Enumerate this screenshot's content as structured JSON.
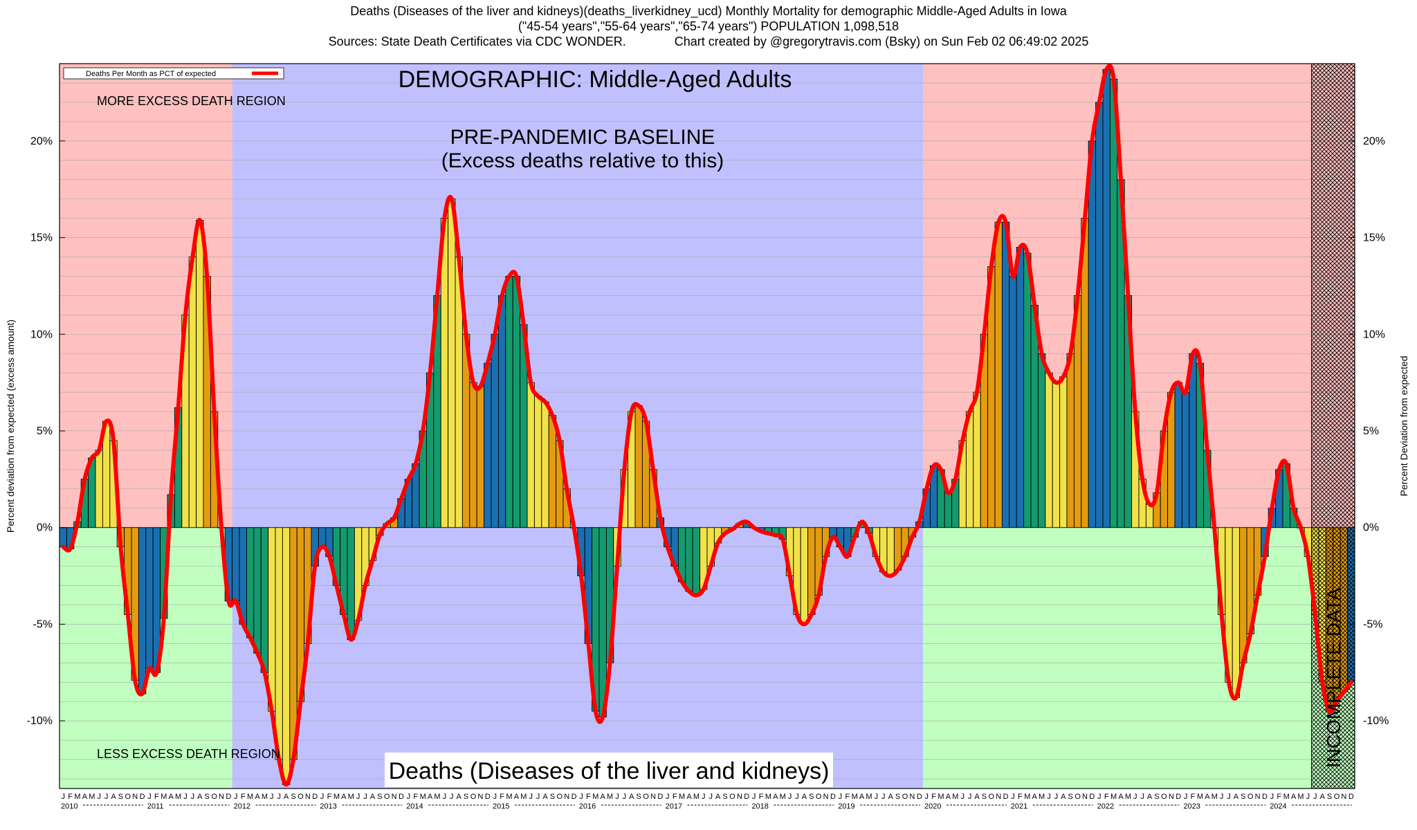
{
  "header": {
    "line1": "Deaths (Diseases of the liver and kidneys)(deaths_liverkidney_ucd) Monthly Mortality for demographic Middle-Aged Adults in Iowa",
    "line2": "(\"45-54 years\",\"55-64 years\",\"65-74 years\") POPULATION 1,098,518",
    "line3": "Sources: State Death Certificates via CDC WONDER.              Chart created by @gregorytravis.com (Bsky) on Sun Feb 02 06:49:02 2025"
  },
  "chart_data": {
    "type": "bar",
    "title": "DEMOGRAPHIC: Middle-Aged Adults",
    "subtitle": "Deaths (Diseases of the liver and kidneys)",
    "ylabel_left": "Percent deviation from expected (excess amount)",
    "ylabel_right": "Percent Deviation from expected",
    "legend": {
      "label": "Deaths Per Month as PCT of expected",
      "position": "top-left"
    },
    "ylim": [
      -13.5,
      24
    ],
    "yticks": [
      {
        "v": -10,
        "label": "-10%"
      },
      {
        "v": -5,
        "label": "-5%"
      },
      {
        "v": 0,
        "label": "0%"
      },
      {
        "v": 5,
        "label": "5%"
      },
      {
        "v": 10,
        "label": "10%"
      },
      {
        "v": 15,
        "label": "15%"
      },
      {
        "v": 20,
        "label": "20%"
      }
    ],
    "grid": true,
    "month_letters": [
      "J",
      "F",
      "M",
      "A",
      "M",
      "J",
      "J",
      "A",
      "S",
      "O",
      "N",
      "D"
    ],
    "years": [
      "2010",
      "2011",
      "2012",
      "2013",
      "2014",
      "2015",
      "2016",
      "2017",
      "2018",
      "2019",
      "2020",
      "2021",
      "2022",
      "2023",
      "2024"
    ],
    "x_start": "2010-01",
    "line_color": "#ff0000",
    "season_colors": [
      "#1a6fb0",
      "#159a6e",
      "#f2e24a",
      "#e39c12"
    ],
    "regions": {
      "more_excess_label": "MORE EXCESS DEATH REGION",
      "less_excess_label": "LESS EXCESS DEATH REGION",
      "baseline_label_1": "PRE-PANDEMIC BASELINE",
      "baseline_label_2": "(Excess deaths relative to this)",
      "baseline_start": "2012-01",
      "baseline_end": "2019-12",
      "incomplete_label": "INCOMPLETE DATA",
      "incomplete_start": "2024-07",
      "more_color": "#ffc0c0",
      "less_color": "#c0ffc0",
      "baseline_color": "#c0c0ff"
    },
    "values": [
      -1.0,
      -1.1,
      0.3,
      2.5,
      3.6,
      4.0,
      5.5,
      4.5,
      -1.0,
      -4.5,
      -7.9,
      -8.6,
      -7.3,
      -7.5,
      -4.7,
      1.7,
      6.2,
      11.0,
      14.0,
      15.9,
      13.0,
      6.0,
      0.0,
      -3.8,
      -3.8,
      -5.0,
      -5.7,
      -6.5,
      -7.5,
      -9.5,
      -12.0,
      -13.3,
      -12.0,
      -9.0,
      -6.0,
      -2.0,
      -1.0,
      -1.5,
      -3.0,
      -4.5,
      -5.8,
      -4.8,
      -3.0,
      -1.7,
      -0.4,
      0.2,
      0.5,
      1.5,
      2.5,
      3.3,
      5.0,
      8.0,
      12.0,
      16.0,
      17.0,
      14.0,
      10.0,
      7.5,
      7.3,
      8.5,
      10.0,
      12.0,
      13.0,
      13.0,
      10.5,
      7.5,
      6.8,
      6.5,
      5.8,
      4.5,
      2.0,
      0.0,
      -2.5,
      -6.0,
      -9.5,
      -9.8,
      -7.0,
      -2.0,
      3.0,
      6.0,
      6.3,
      5.5,
      3.0,
      0.5,
      -1.0,
      -2.0,
      -2.8,
      -3.3,
      -3.5,
      -3.2,
      -2.0,
      -0.8,
      -0.3,
      -0.1,
      0.2,
      0.3,
      0.0,
      -0.2,
      -0.3,
      -0.4,
      -0.6,
      -2.5,
      -4.5,
      -5.0,
      -4.5,
      -3.5,
      -1.5,
      -0.5,
      -1.0,
      -1.5,
      -0.5,
      0.3,
      -0.3,
      -1.5,
      -2.3,
      -2.5,
      -2.2,
      -1.5,
      -0.5,
      0.3,
      2.0,
      3.2,
      3.0,
      1.8,
      2.5,
      4.5,
      6.0,
      7.0,
      10.0,
      13.5,
      15.8,
      15.8,
      13.0,
      14.5,
      14.2,
      11.5,
      9.0,
      8.0,
      7.5,
      7.8,
      9.0,
      12.0,
      16.0,
      20.0,
      22.0,
      23.7,
      23.2,
      18.0,
      12.0,
      6.0,
      2.5,
      1.2,
      1.8,
      5.0,
      7.0,
      7.5,
      7.0,
      9.0,
      8.5,
      4.0,
      0.0,
      -4.5,
      -8.0,
      -8.8,
      -7.0,
      -5.5,
      -3.5,
      -1.5,
      1.0,
      3.0,
      3.3,
      1.0,
      0.0,
      -1.5,
      -4.5,
      -8.0,
      -9.5,
      -9.0,
      -8.5,
      -8.0
    ]
  }
}
